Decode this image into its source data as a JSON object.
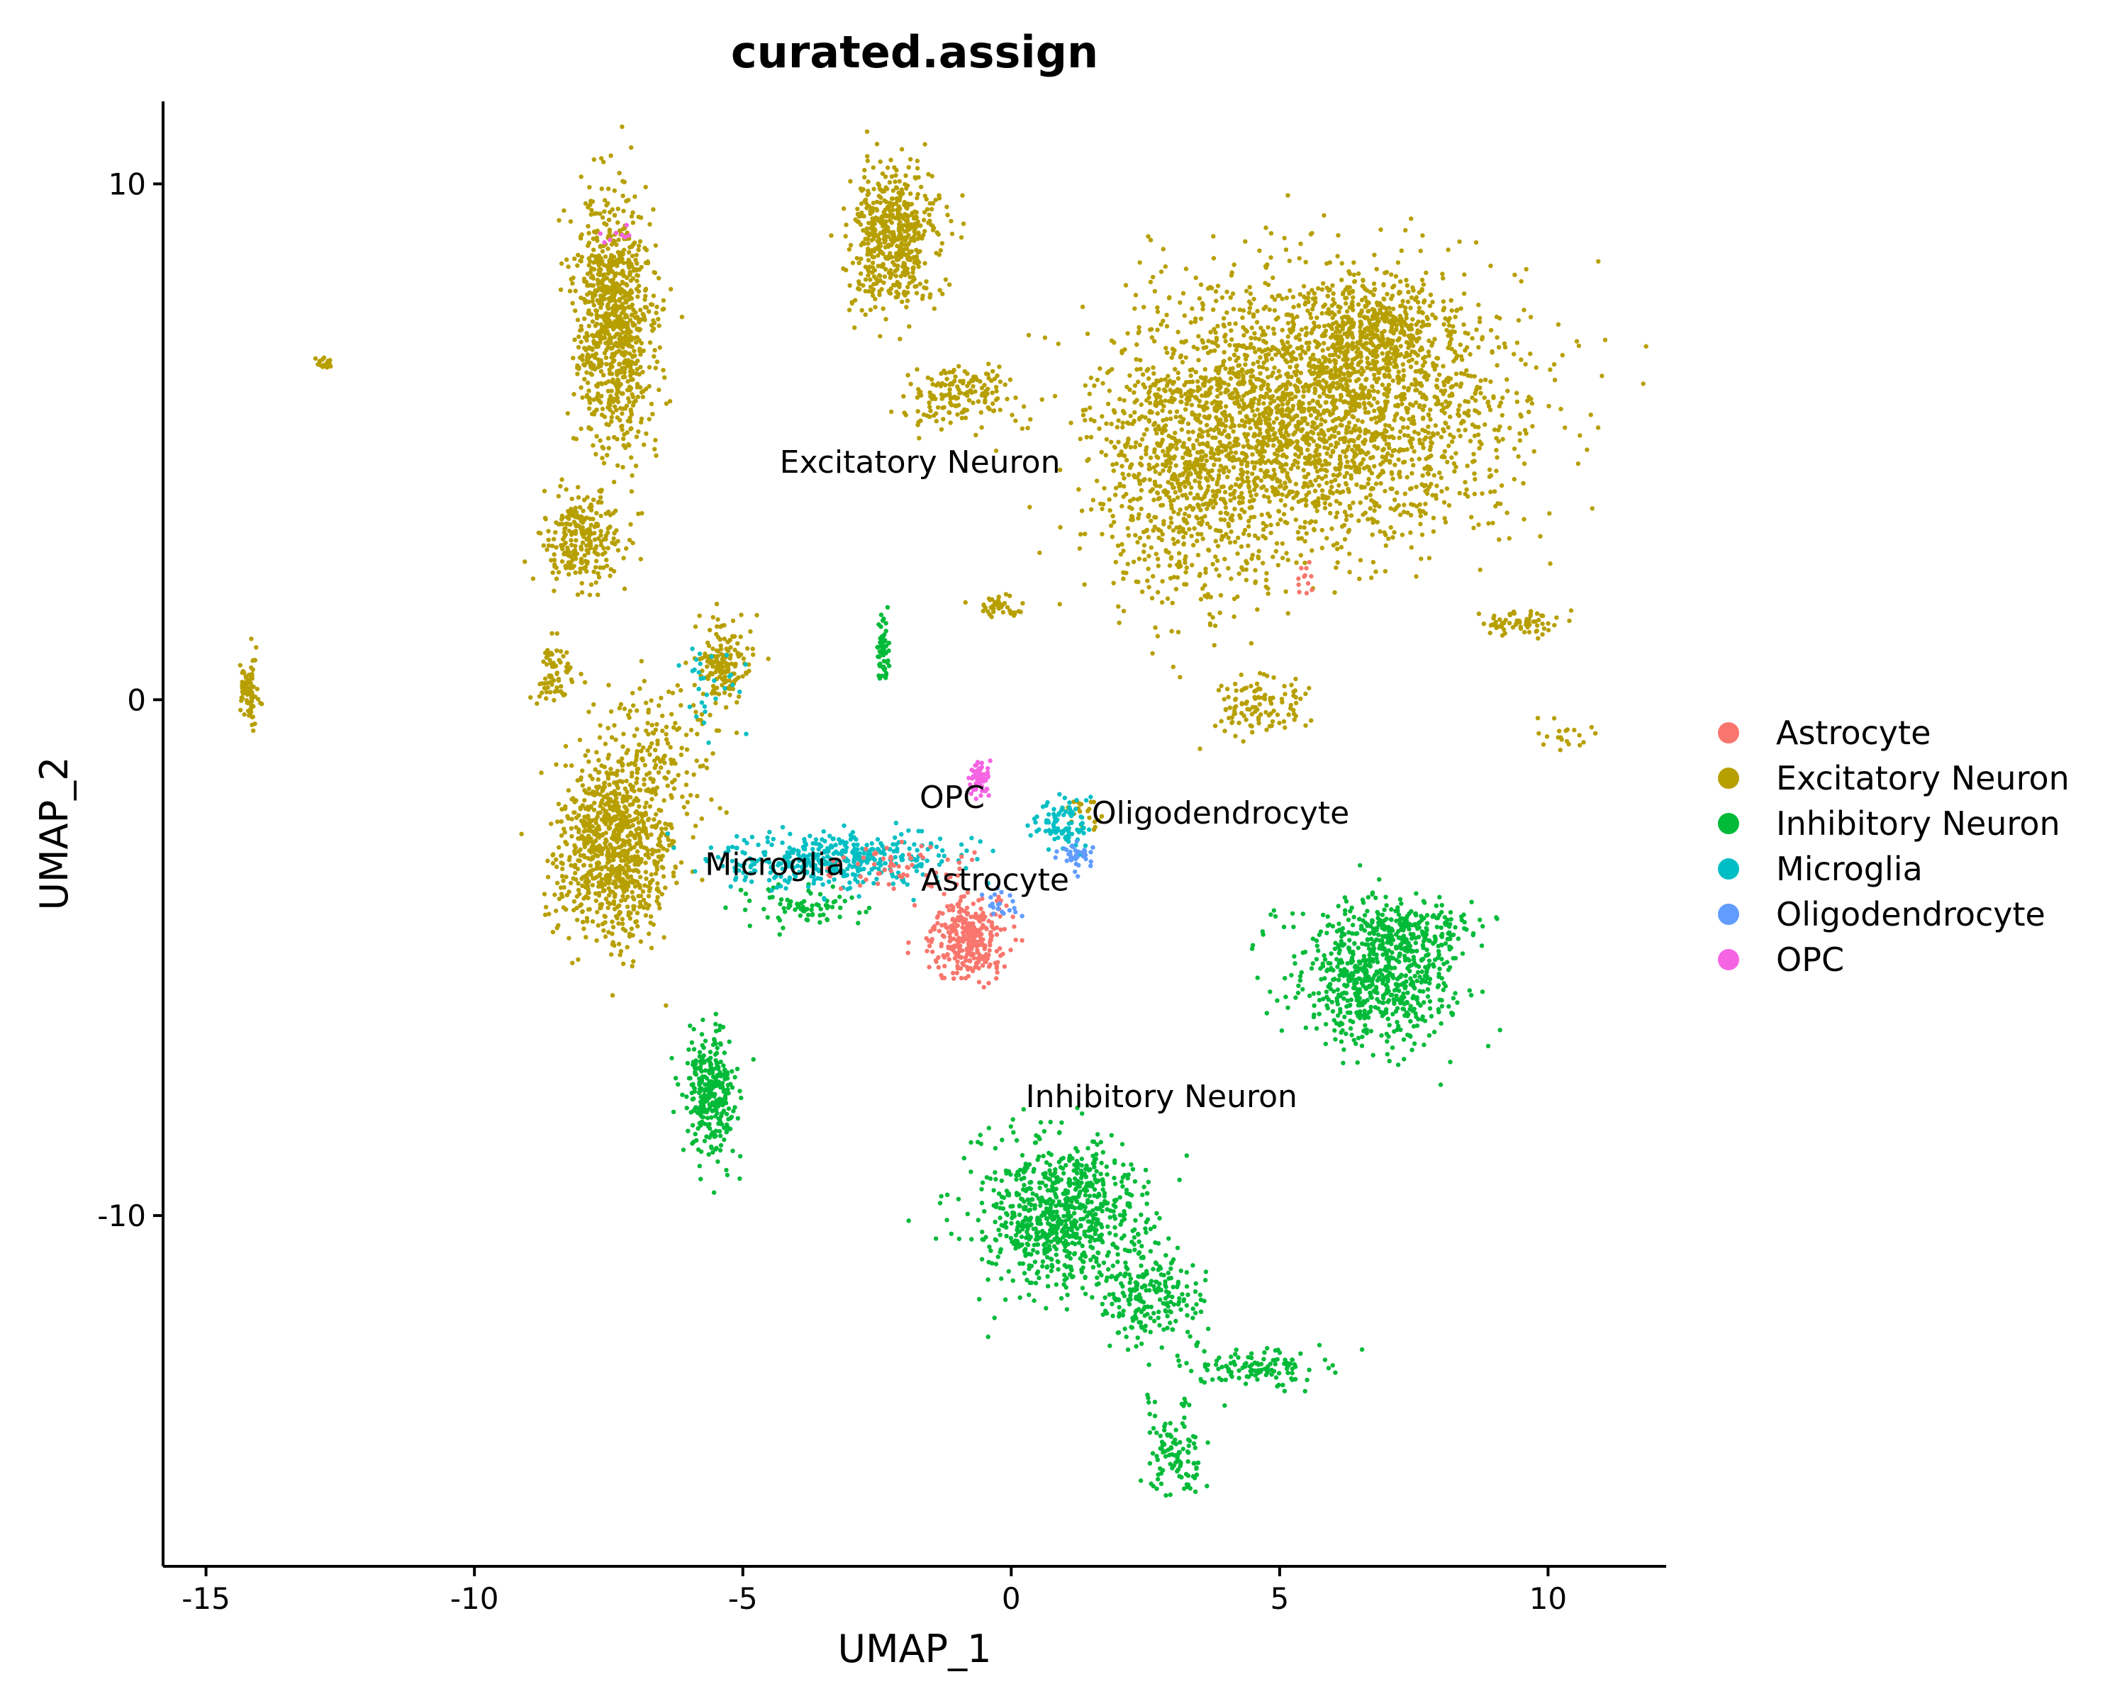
{
  "chart_data": {
    "type": "scatter",
    "title": "curated.assign",
    "xlabel": "UMAP_1",
    "ylabel": "UMAP_2",
    "xlim": [
      -15.8,
      12.2
    ],
    "ylim": [
      -16.8,
      11.6
    ],
    "x_ticks": [
      -15,
      -10,
      -5,
      0,
      5,
      10
    ],
    "y_ticks": [
      10,
      0,
      -10
    ],
    "x_tick_labels": [
      "-15",
      "-10",
      "-5",
      "0",
      "5",
      "10"
    ],
    "y_tick_labels": [
      "10",
      "0",
      "-10"
    ],
    "grid": false,
    "legend_position": "right",
    "series": [
      {
        "name": "Astrocyte",
        "color": "#F8766D"
      },
      {
        "name": "Excitatory Neuron",
        "color": "#B79F00"
      },
      {
        "name": "Inhibitory Neuron",
        "color": "#00BA38"
      },
      {
        "name": "Microglia",
        "color": "#00BFC4"
      },
      {
        "name": "Oligodendrocyte",
        "color": "#619CFF"
      },
      {
        "name": "OPC",
        "color": "#F564E3"
      }
    ],
    "annotations": [
      {
        "text": "Excitatory Neuron",
        "x": -1.7,
        "y": 4.4
      },
      {
        "text": "OPC",
        "x": -1.1,
        "y": -2.1
      },
      {
        "text": "Oligodendrocyte",
        "x": 3.9,
        "y": -2.4
      },
      {
        "text": "Microglia",
        "x": -4.4,
        "y": -3.4
      },
      {
        "text": "Astrocyte",
        "x": -0.3,
        "y": -3.7
      },
      {
        "text": "Inhibitory Neuron",
        "x": 2.8,
        "y": -7.9
      }
    ],
    "clusters": [
      {
        "series": "Excitatory Neuron",
        "cx": 5.6,
        "cy": 5.6,
        "sx": 2.4,
        "sy": 1.7,
        "n": 2600
      },
      {
        "series": "Excitatory Neuron",
        "cx": 3.3,
        "cy": 3.8,
        "sx": 1.1,
        "sy": 1.5,
        "n": 500
      },
      {
        "series": "Excitatory Neuron",
        "cx": 6.8,
        "cy": 7.2,
        "sx": 1.0,
        "sy": 0.6,
        "n": 400
      },
      {
        "series": "Excitatory Neuron",
        "cx": -7.4,
        "cy": 7.3,
        "sx": 0.5,
        "sy": 1.6,
        "n": 900
      },
      {
        "series": "Excitatory Neuron",
        "cx": -2.2,
        "cy": 9.0,
        "sx": 0.55,
        "sy": 0.9,
        "n": 550
      },
      {
        "series": "Excitatory Neuron",
        "cx": -1.0,
        "cy": 5.9,
        "sx": 0.7,
        "sy": 0.4,
        "n": 160
      },
      {
        "series": "Excitatory Neuron",
        "cx": -8.0,
        "cy": 3.1,
        "sx": 0.5,
        "sy": 0.6,
        "n": 260
      },
      {
        "series": "Excitatory Neuron",
        "cx": -5.4,
        "cy": 0.7,
        "sx": 0.35,
        "sy": 0.5,
        "n": 160
      },
      {
        "series": "Excitatory Neuron",
        "cx": -8.5,
        "cy": 0.6,
        "sx": 0.25,
        "sy": 0.4,
        "n": 70
      },
      {
        "series": "Excitatory Neuron",
        "cx": -7.4,
        "cy": -2.9,
        "sx": 0.7,
        "sy": 1.1,
        "n": 900
      },
      {
        "series": "Excitatory Neuron",
        "cx": -6.6,
        "cy": -0.9,
        "sx": 0.8,
        "sy": 0.9,
        "n": 150
      },
      {
        "series": "Excitatory Neuron",
        "cx": -14.2,
        "cy": 0.2,
        "sx": 0.12,
        "sy": 0.45,
        "n": 80
      },
      {
        "series": "Excitatory Neuron",
        "cx": -12.8,
        "cy": 6.5,
        "sx": 0.12,
        "sy": 0.08,
        "n": 20
      },
      {
        "series": "Excitatory Neuron",
        "cx": -0.2,
        "cy": 1.8,
        "sx": 0.3,
        "sy": 0.15,
        "n": 40
      },
      {
        "series": "Excitatory Neuron",
        "cx": 4.6,
        "cy": -0.1,
        "sx": 0.6,
        "sy": 0.4,
        "n": 110
      },
      {
        "series": "Excitatory Neuron",
        "cx": 9.5,
        "cy": 1.5,
        "sx": 0.5,
        "sy": 0.15,
        "n": 70
      },
      {
        "series": "Excitatory Neuron",
        "cx": 10.2,
        "cy": -0.7,
        "sx": 0.4,
        "sy": 0.3,
        "n": 20
      },
      {
        "series": "Excitatory Neuron",
        "cx": 1.3,
        "cy": -2.2,
        "sx": 0.25,
        "sy": 0.2,
        "n": 25
      },
      {
        "series": "Inhibitory Neuron",
        "cx": 0.9,
        "cy": -10.0,
        "sx": 1.0,
        "sy": 0.9,
        "n": 800
      },
      {
        "series": "Inhibitory Neuron",
        "cx": 2.6,
        "cy": -11.5,
        "sx": 0.6,
        "sy": 0.7,
        "n": 220
      },
      {
        "series": "Inhibitory Neuron",
        "cx": 4.6,
        "cy": -13.0,
        "sx": 0.8,
        "sy": 0.25,
        "n": 120
      },
      {
        "series": "Inhibitory Neuron",
        "cx": 3.1,
        "cy": -14.5,
        "sx": 0.4,
        "sy": 0.6,
        "n": 110
      },
      {
        "series": "Inhibitory Neuron",
        "cx": 6.8,
        "cy": -5.4,
        "sx": 1.0,
        "sy": 0.9,
        "n": 650
      },
      {
        "series": "Inhibitory Neuron",
        "cx": 7.4,
        "cy": -4.5,
        "sx": 0.8,
        "sy": 0.35,
        "n": 200
      },
      {
        "series": "Inhibitory Neuron",
        "cx": -5.6,
        "cy": -7.6,
        "sx": 0.3,
        "sy": 0.75,
        "n": 320
      },
      {
        "series": "Inhibitory Neuron",
        "cx": -2.4,
        "cy": 0.9,
        "sx": 0.08,
        "sy": 0.45,
        "n": 60
      },
      {
        "series": "Inhibitory Neuron",
        "cx": -3.8,
        "cy": -4.0,
        "sx": 0.7,
        "sy": 0.3,
        "n": 80
      },
      {
        "series": "Microglia",
        "cx": -3.2,
        "cy": -3.1,
        "sx": 1.4,
        "sy": 0.35,
        "n": 420
      },
      {
        "series": "Microglia",
        "cx": 0.9,
        "cy": -2.4,
        "sx": 0.4,
        "sy": 0.3,
        "n": 90
      },
      {
        "series": "Microglia",
        "cx": -5.6,
        "cy": 0.4,
        "sx": 0.5,
        "sy": 0.6,
        "n": 30
      },
      {
        "series": "Astrocyte",
        "cx": -0.8,
        "cy": -4.6,
        "sx": 0.45,
        "sy": 0.55,
        "n": 330
      },
      {
        "series": "Astrocyte",
        "cx": -2.2,
        "cy": -3.2,
        "sx": 0.8,
        "sy": 0.3,
        "n": 60
      },
      {
        "series": "Astrocyte",
        "cx": 5.5,
        "cy": 2.3,
        "sx": 0.12,
        "sy": 0.25,
        "n": 12
      },
      {
        "series": "OPC",
        "cx": -0.6,
        "cy": -1.5,
        "sx": 0.12,
        "sy": 0.22,
        "n": 60
      },
      {
        "series": "OPC",
        "cx": -7.5,
        "cy": 9.0,
        "sx": 0.3,
        "sy": 0.2,
        "n": 8
      },
      {
        "series": "Oligodendrocyte",
        "cx": 1.2,
        "cy": -3.0,
        "sx": 0.2,
        "sy": 0.25,
        "n": 35
      },
      {
        "series": "Oligodendrocyte",
        "cx": -0.1,
        "cy": -4.0,
        "sx": 0.25,
        "sy": 0.25,
        "n": 20
      }
    ]
  }
}
